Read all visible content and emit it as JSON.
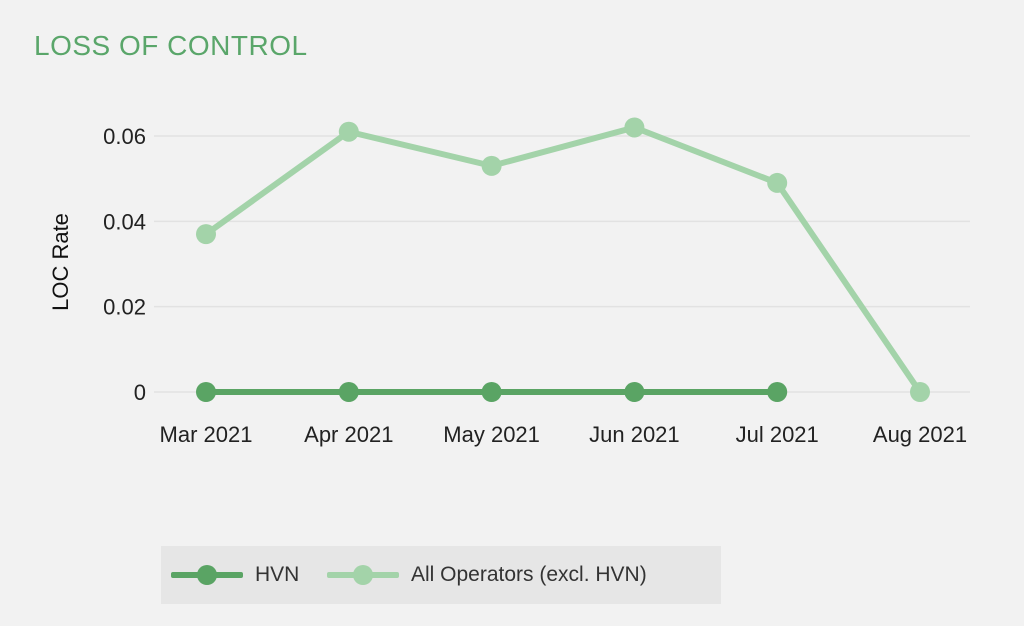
{
  "chart_data": {
    "type": "line",
    "title": "LOSS OF CONTROL",
    "ylabel": "LOC Rate",
    "xlabel": "",
    "categories": [
      "Mar 2021",
      "Apr 2021",
      "May 2021",
      "Jun 2021",
      "Jul 2021",
      "Aug 2021"
    ],
    "ylim": [
      0,
      0.06
    ],
    "yticks": [
      "0",
      "0.02",
      "0.04",
      "0.06"
    ],
    "ytick_values": [
      0,
      0.02,
      0.04,
      0.06
    ],
    "grid": true,
    "legend_position": "bottom-left",
    "series": [
      {
        "name": "HVN",
        "color": "#5aa464",
        "values": [
          0,
          0,
          0,
          0,
          0,
          null
        ]
      },
      {
        "name": "All Operators (excl. HVN)",
        "color": "#a3d3a9",
        "values": [
          0.037,
          0.061,
          0.053,
          0.062,
          0.049,
          0
        ]
      }
    ]
  }
}
